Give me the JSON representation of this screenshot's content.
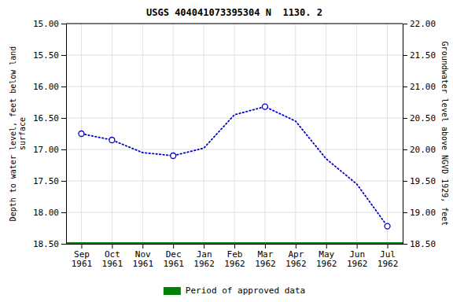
{
  "chart_data": {
    "type": "line",
    "title": "USGS 404041073395304 N  1130. 2",
    "categories": [
      "Sep\n1961",
      "Oct\n1961",
      "Nov\n1961",
      "Dec\n1961",
      "Jan\n1962",
      "Feb\n1962",
      "Mar\n1962",
      "Apr\n1962",
      "May\n1962",
      "Jun\n1962",
      "Jul\n1962"
    ],
    "series": [
      {
        "color": "#0000cc",
        "line_style": "dotted",
        "values": [
          16.75,
          16.85,
          17.05,
          17.1,
          16.98,
          16.45,
          16.32,
          16.55,
          17.15,
          17.55,
          18.22
        ]
      },
      {
        "color": "#0000cc",
        "marker": "circle",
        "line_style": "none",
        "values": [
          16.75,
          16.85,
          null,
          17.1,
          null,
          null,
          16.32,
          null,
          null,
          null,
          18.22
        ]
      }
    ],
    "hline": {
      "name": "Period of approved data",
      "color": "#008000",
      "value": 18.5
    },
    "y_label": "Depth to water level, feet below land\nsurface",
    "y2_label": "Groundwater level above NGVD 1929, feet",
    "ylim": [
      18.5,
      15.0
    ],
    "yticks": [
      {
        "value": 15.0,
        "label": "15.00"
      },
      {
        "value": 15.5,
        "label": "15.50"
      },
      {
        "value": 16.0,
        "label": "16.00"
      },
      {
        "value": 16.5,
        "label": "16.50"
      },
      {
        "value": 17.0,
        "label": "17.00"
      },
      {
        "value": 17.5,
        "label": "17.50"
      },
      {
        "value": 18.0,
        "label": "18.00"
      },
      {
        "value": 18.5,
        "label": "18.50"
      }
    ],
    "y2lim": [
      18.5,
      22.0
    ],
    "y2ticks": [
      {
        "value": 22.0,
        "label": "22.00"
      },
      {
        "value": 21.5,
        "label": "21.50"
      },
      {
        "value": 21.0,
        "label": "21.00"
      },
      {
        "value": 20.5,
        "label": "20.50"
      },
      {
        "value": 20.0,
        "label": "20.00"
      },
      {
        "value": 19.5,
        "label": "19.50"
      },
      {
        "value": 19.0,
        "label": "19.00"
      },
      {
        "value": 18.5,
        "label": "18.50"
      }
    ],
    "grid": true,
    "legend": "bottom"
  }
}
